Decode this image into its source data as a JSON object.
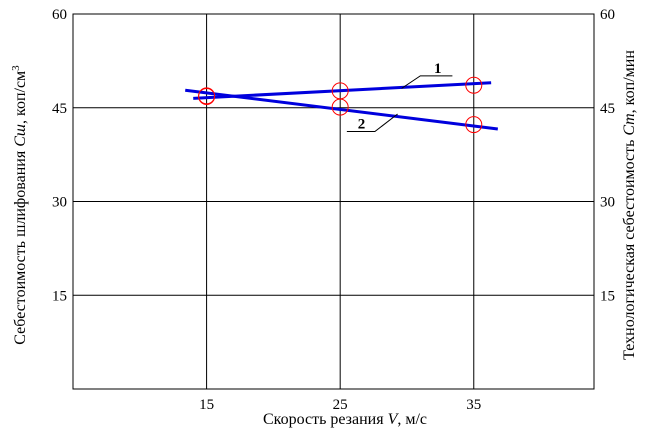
{
  "chart_data": {
    "type": "line",
    "x_ticks": [
      "15",
      "25",
      "35"
    ],
    "y_ticks_left": [
      "60",
      "45",
      "30",
      "15"
    ],
    "y_ticks_right": [
      "60",
      "45",
      "30",
      "15"
    ],
    "xlabel": "Скорость резания V, м/с",
    "ylabel_left": "Себестоимость шлифования Cш, коп/см³",
    "ylabel_right": "Технологическая себестоимость Cт, коп/мин",
    "xlim": [
      5,
      44
    ],
    "ylim": [
      0,
      60
    ],
    "grid": true,
    "series": [
      {
        "name": "1",
        "color": "#0000dd",
        "line": [
          [
            14,
            46.5
          ],
          [
            36.3,
            49.0
          ]
        ],
        "points": [
          [
            15,
            46.8
          ],
          [
            25,
            47.7
          ],
          [
            35,
            48.6
          ]
        ]
      },
      {
        "name": "2",
        "color": "#0000dd",
        "line": [
          [
            13.4,
            47.8
          ],
          [
            36.8,
            41.6
          ]
        ],
        "points": [
          [
            15,
            46.9
          ],
          [
            25,
            45.1
          ],
          [
            35,
            42.3
          ]
        ]
      }
    ],
    "marker_color": "#ff0000"
  }
}
